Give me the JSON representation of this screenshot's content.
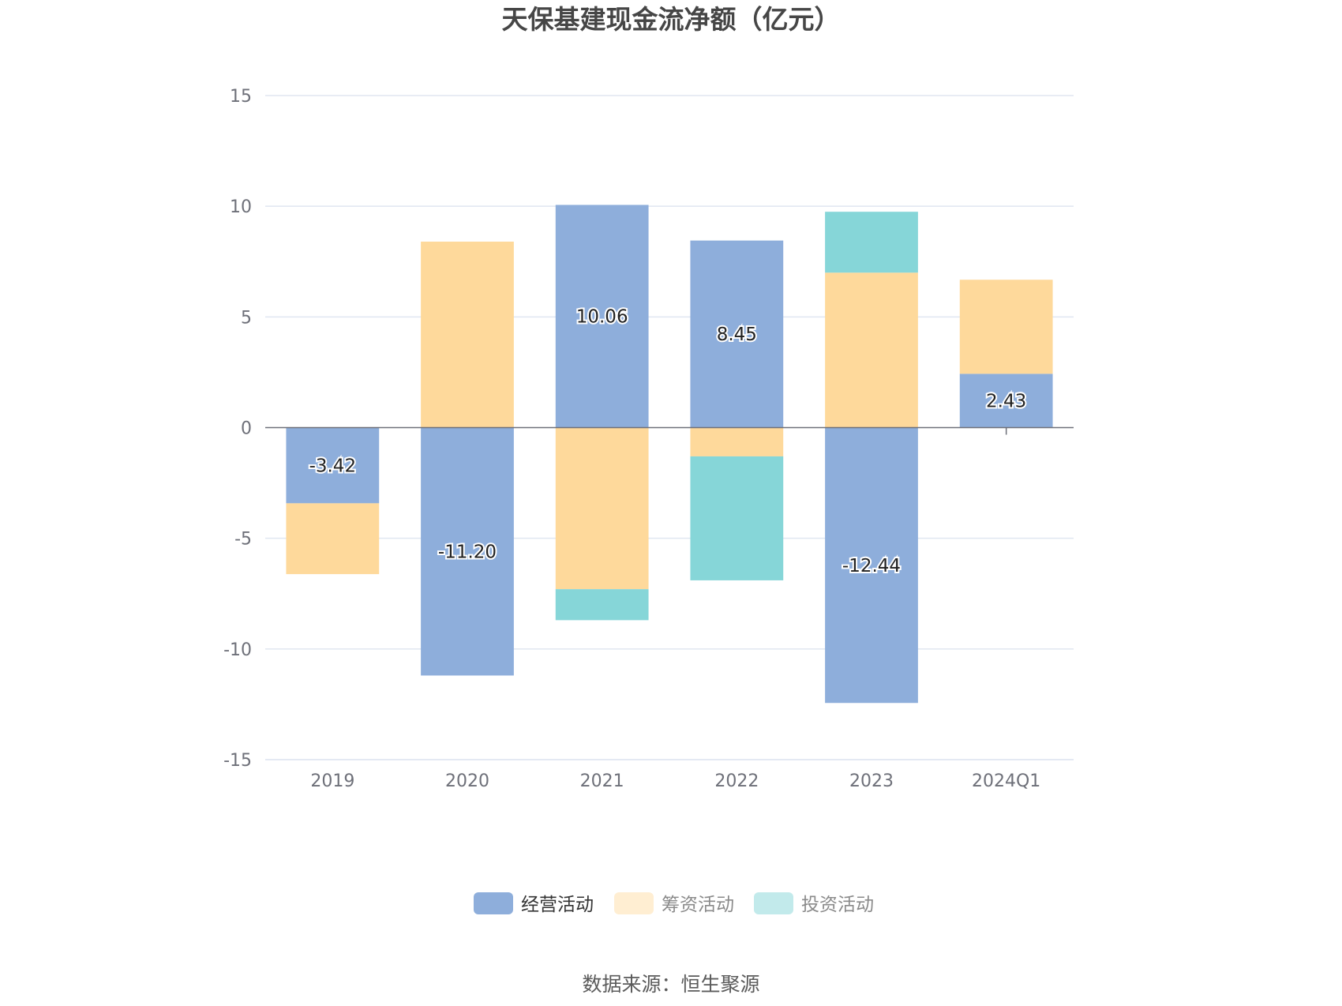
{
  "chart_data": {
    "type": "bar",
    "stacked": true,
    "title": "天保基建现金流净额（亿元）",
    "categories": [
      "2019",
      "2020",
      "2021",
      "2022",
      "2023",
      "2024Q1"
    ],
    "series": [
      {
        "name": "经营活动",
        "color": "#8eaedb",
        "values": [
          -3.42,
          -11.2,
          10.06,
          8.45,
          -12.44,
          2.43
        ]
      },
      {
        "name": "筹资活动",
        "color": "#fed99b",
        "values": [
          -3.2,
          8.4,
          -7.3,
          -1.3,
          7.0,
          4.25
        ]
      },
      {
        "name": "投资活动",
        "color": "#86d6d8",
        "values": [
          0,
          0,
          -1.4,
          -5.6,
          2.75,
          0
        ]
      }
    ],
    "data_labels_series": "经营活动",
    "ylim": [
      -15,
      15
    ],
    "yticks": [
      15,
      10,
      5,
      0,
      -5,
      -10,
      -15
    ],
    "grid": true,
    "legend_position": "bottom",
    "source": "数据来源：恒生聚源"
  }
}
